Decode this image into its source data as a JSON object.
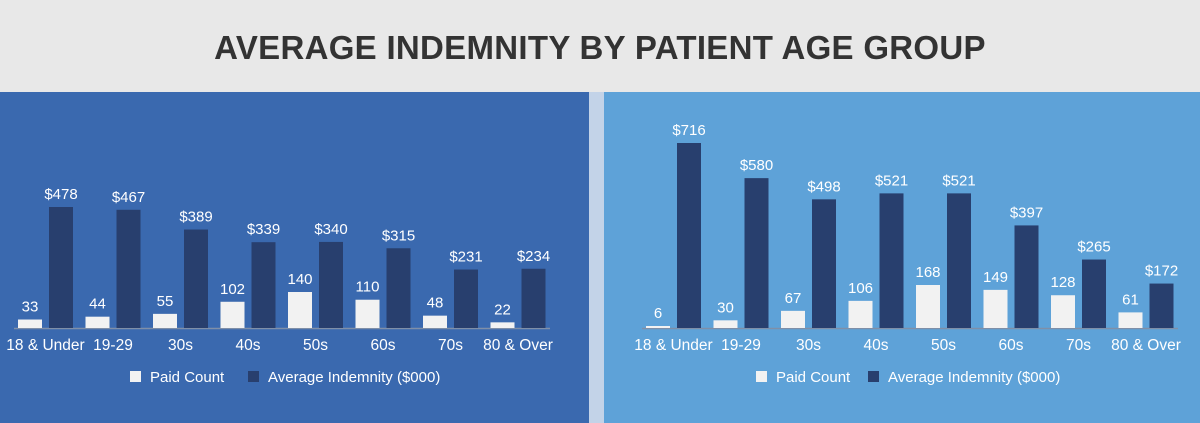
{
  "title": "AVERAGE INDEMNITY BY PATIENT AGE GROUP",
  "colors": {
    "left_panel": "#3a69af",
    "right_panel": "#5ea2d8",
    "paid_count_bar": "#f2f2f2",
    "avg_indemnity_bar": "#283f6e",
    "text": "#ffffff"
  },
  "chart_data": [
    {
      "type": "bar",
      "categories": [
        "18 & Under",
        "19-29",
        "30s",
        "40s",
        "50s",
        "60s",
        "70s",
        "80 & Over"
      ],
      "series": [
        {
          "name": "Paid Count",
          "values": [
            33,
            44,
            55,
            102,
            140,
            110,
            48,
            22
          ],
          "labels": [
            "33",
            "44",
            "55",
            "102",
            "140",
            "110",
            "48",
            "22"
          ]
        },
        {
          "name": "Average Indemnity ($000)",
          "values": [
            478,
            467,
            389,
            339,
            340,
            315,
            231,
            234
          ],
          "labels": [
            "$478",
            "$467",
            "$389",
            "$339",
            "$340",
            "$315",
            "$231",
            "$234"
          ]
        }
      ],
      "legend": [
        "Paid Count",
        "Average Indemnity ($000)"
      ],
      "legend_position": "bottom",
      "grid": false
    },
    {
      "type": "bar",
      "categories": [
        "18 & Under",
        "19-29",
        "30s",
        "40s",
        "50s",
        "60s",
        "70s",
        "80 & Over"
      ],
      "series": [
        {
          "name": "Paid Count",
          "values": [
            6,
            30,
            67,
            106,
            168,
            149,
            128,
            61
          ],
          "labels": [
            "6",
            "30",
            "67",
            "106",
            "168",
            "149",
            "128",
            "61"
          ]
        },
        {
          "name": "Average Indemnity ($000)",
          "values": [
            716,
            580,
            498,
            521,
            521,
            397,
            265,
            172
          ],
          "labels": [
            "$716",
            "$580",
            "$498",
            "$521",
            "$521",
            "$397",
            "$265",
            "$172"
          ]
        }
      ],
      "legend": [
        "Paid Count",
        "Average Indemnity ($000)"
      ],
      "legend_position": "bottom",
      "grid": false
    }
  ]
}
